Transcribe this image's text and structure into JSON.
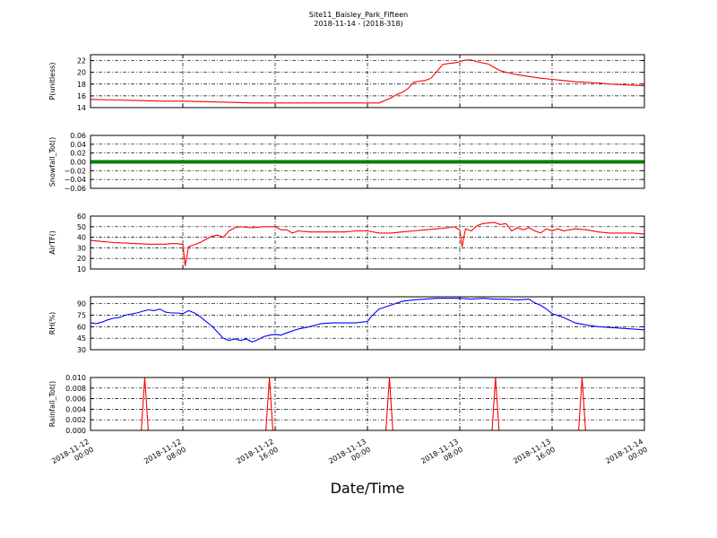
{
  "chart_data": {
    "type": "line",
    "title": "Site11_Baisley_Park_Fifteen",
    "subtitle": "2018-11-14 - (2018-318)",
    "xlabel": "Date/Time",
    "x_tick_labels": [
      [
        "2018-11-12",
        "00:00"
      ],
      [
        "2018-11-12",
        "08:00"
      ],
      [
        "2018-11-12",
        "16:00"
      ],
      [
        "2018-11-13",
        "00:00"
      ],
      [
        "2018-11-13",
        "08:00"
      ],
      [
        "2018-11-13",
        "16:00"
      ],
      [
        "2018-11-14",
        "00:00"
      ]
    ],
    "x_unit": "hours since 2018-11-12 00:00",
    "x_range": [
      0,
      48
    ],
    "grid": true,
    "panels": [
      {
        "ylabel": "P(unitless)",
        "color": "#ff0000",
        "ylim": [
          14,
          23
        ],
        "yticks": [
          14,
          16,
          18,
          20,
          22
        ],
        "ytick_labels": [
          "14",
          "16",
          "18",
          "20",
          "22"
        ],
        "x": [
          0,
          2,
          4,
          6,
          8,
          10,
          12,
          14,
          16,
          18,
          20,
          22,
          24,
          25,
          26,
          26.5,
          27,
          27.5,
          28,
          28.5,
          29,
          29.5,
          30,
          30.5,
          31,
          31.5,
          32,
          32.5,
          33,
          33.5,
          34,
          34.5,
          35,
          35.5,
          36,
          36.5,
          37,
          38,
          39,
          40,
          41,
          42,
          43,
          44,
          45,
          46,
          47,
          48
        ],
        "y": [
          15.4,
          15.3,
          15.2,
          15.1,
          15.1,
          15.0,
          14.9,
          14.8,
          14.8,
          14.8,
          14.8,
          14.8,
          14.8,
          14.8,
          15.6,
          16.2,
          16.6,
          17.2,
          18.3,
          18.5,
          18.6,
          19.0,
          20.1,
          21.3,
          21.5,
          21.6,
          21.8,
          22.1,
          22.1,
          21.8,
          21.6,
          21.4,
          20.8,
          20.3,
          20.0,
          19.8,
          19.6,
          19.3,
          19.0,
          18.8,
          18.6,
          18.4,
          18.3,
          18.2,
          18.0,
          17.9,
          17.8,
          17.7
        ]
      },
      {
        "ylabel": "Snowfall_Tot()",
        "color": "#008000",
        "ylim": [
          -0.06,
          0.06
        ],
        "yticks": [
          -0.06,
          -0.04,
          -0.02,
          0.0,
          0.02,
          0.04,
          0.06
        ],
        "ytick_labels": [
          "−0.06",
          "−0.04",
          "−0.02",
          "0.00",
          "0.02",
          "0.04",
          "0.06"
        ],
        "x": [
          0,
          48
        ],
        "y": [
          0,
          0
        ]
      },
      {
        "ylabel": "AirTF()",
        "color": "#ff0000",
        "ylim": [
          10,
          60
        ],
        "yticks": [
          10,
          20,
          30,
          40,
          50,
          60
        ],
        "ytick_labels": [
          "10",
          "20",
          "30",
          "40",
          "50",
          "60"
        ],
        "x": [
          0,
          1,
          2,
          3,
          4,
          5,
          6,
          6.5,
          7,
          7.5,
          7.8,
          8.0,
          8.2,
          8.5,
          9,
          9.5,
          10,
          10.5,
          11,
          11.5,
          12,
          12.5,
          13,
          14,
          15,
          16,
          16.5,
          17,
          17.5,
          18,
          19,
          20,
          21,
          22,
          23,
          24,
          25,
          26,
          27,
          28,
          29,
          30,
          31,
          31.5,
          32,
          32.2,
          32.5,
          33,
          33.5,
          34,
          35,
          35.5,
          36,
          36.5,
          37,
          37.5,
          38,
          38.5,
          39,
          39.5,
          40,
          40.5,
          41,
          42,
          43,
          44,
          45,
          46,
          47,
          48
        ],
        "y": [
          37,
          36,
          35,
          34.5,
          34,
          33.5,
          33.5,
          33.5,
          34,
          34,
          33.5,
          33.5,
          13,
          31,
          33,
          35,
          38,
          41,
          42,
          40,
          46,
          49,
          50,
          49,
          50,
          50,
          47,
          47,
          44,
          46,
          45,
          45,
          45,
          45,
          46,
          46,
          44,
          44,
          45,
          46,
          47,
          48,
          49,
          50,
          47,
          31,
          48,
          46,
          51,
          53,
          54,
          52,
          53,
          46,
          49,
          47,
          49,
          46,
          44,
          48,
          46,
          48,
          46,
          48,
          47,
          45,
          44,
          44,
          44,
          43
        ]
      },
      {
        "ylabel": "RH(%)",
        "color": "#0000ff",
        "ylim": [
          30,
          99
        ],
        "yticks": [
          30,
          45,
          60,
          75,
          90
        ],
        "ytick_labels": [
          "30",
          "45",
          "60",
          "75",
          "90"
        ],
        "x": [
          0,
          0.5,
          1,
          1.5,
          2,
          2.5,
          3,
          4,
          5,
          5.5,
          6,
          6.5,
          7,
          7.5,
          8,
          8.5,
          9,
          9.5,
          10,
          10.5,
          11,
          11.5,
          12,
          12.5,
          13,
          13.5,
          14,
          14.5,
          15,
          15.5,
          16,
          16.5,
          17,
          18,
          19,
          20,
          21,
          22,
          23,
          24,
          24.5,
          25,
          26,
          27,
          28,
          29,
          30,
          31,
          32,
          33,
          34,
          35,
          36,
          37,
          38,
          38.5,
          39,
          39.5,
          40,
          41,
          42,
          43,
          44,
          45,
          46,
          47,
          48
        ],
        "y": [
          65,
          64,
          66,
          69,
          71,
          72,
          75,
          78,
          82,
          81,
          83,
          79,
          78,
          78,
          77,
          81,
          78,
          73,
          67,
          61,
          53,
          45,
          42,
          44,
          42,
          44,
          40,
          43,
          47,
          49,
          50,
          49,
          52,
          57,
          60,
          64,
          65,
          65,
          65,
          67,
          76,
          83,
          88,
          93,
          95,
          96,
          97,
          97,
          97,
          96,
          97,
          96,
          96,
          95,
          96,
          91,
          88,
          83,
          77,
          72,
          65,
          62,
          60,
          59,
          58,
          57,
          56
        ]
      },
      {
        "ylabel": "Rainfall_Tot()",
        "color": "#ff0000",
        "ylim": [
          0,
          0.01
        ],
        "yticks": [
          0.0,
          0.002,
          0.004,
          0.006,
          0.008,
          0.01
        ],
        "ytick_labels": [
          "0.000",
          "0.002",
          "0.004",
          "0.006",
          "0.008",
          "0.010"
        ],
        "x": [
          0,
          4.4,
          4.7,
          5.0,
          15.2,
          15.5,
          15.8,
          25.6,
          25.9,
          26.2,
          34.8,
          35.1,
          35.4,
          42.3,
          42.6,
          42.9,
          48
        ],
        "y": [
          0,
          0,
          0.01,
          0,
          0,
          0.01,
          0,
          0,
          0.01,
          0,
          0,
          0.01,
          0,
          0,
          0.01,
          0,
          0
        ]
      }
    ]
  }
}
